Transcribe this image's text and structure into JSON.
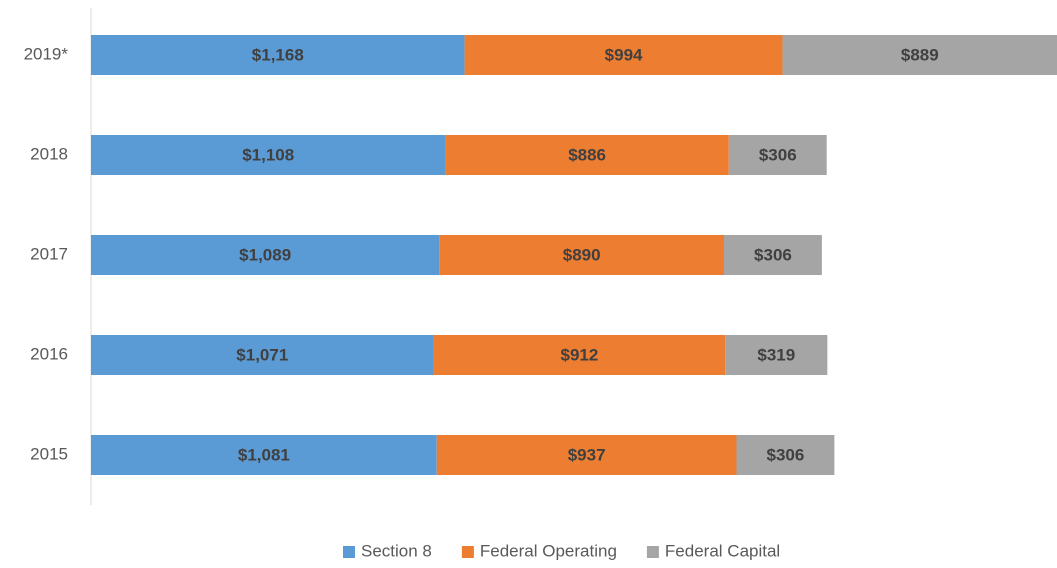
{
  "chart_data": {
    "type": "bar",
    "orientation": "horizontal",
    "stacked": true,
    "categories": [
      "2019*",
      "2018",
      "2017",
      "2016",
      "2015"
    ],
    "series": [
      {
        "name": "Section 8",
        "color": "#5b9bd5",
        "values": [
          1168,
          1108,
          1089,
          1071,
          1081
        ],
        "value_labels": [
          "$1,168",
          "$1,108",
          "$1,089",
          "$1,071",
          "$1,081"
        ]
      },
      {
        "name": "Federal Operating",
        "color": "#ed7d31",
        "values": [
          994,
          886,
          890,
          912,
          937
        ],
        "value_labels": [
          "$994",
          "$886",
          "$890",
          "$912",
          "$937"
        ]
      },
      {
        "name": "Federal Capital",
        "color": "#a5a5a5",
        "values": [
          889,
          306,
          306,
          319,
          306
        ],
        "value_labels": [
          "$889",
          "$306",
          "$306",
          "$319",
          "$306"
        ]
      }
    ],
    "xlim": [
      0,
      3020
    ],
    "legend": "bottom"
  }
}
